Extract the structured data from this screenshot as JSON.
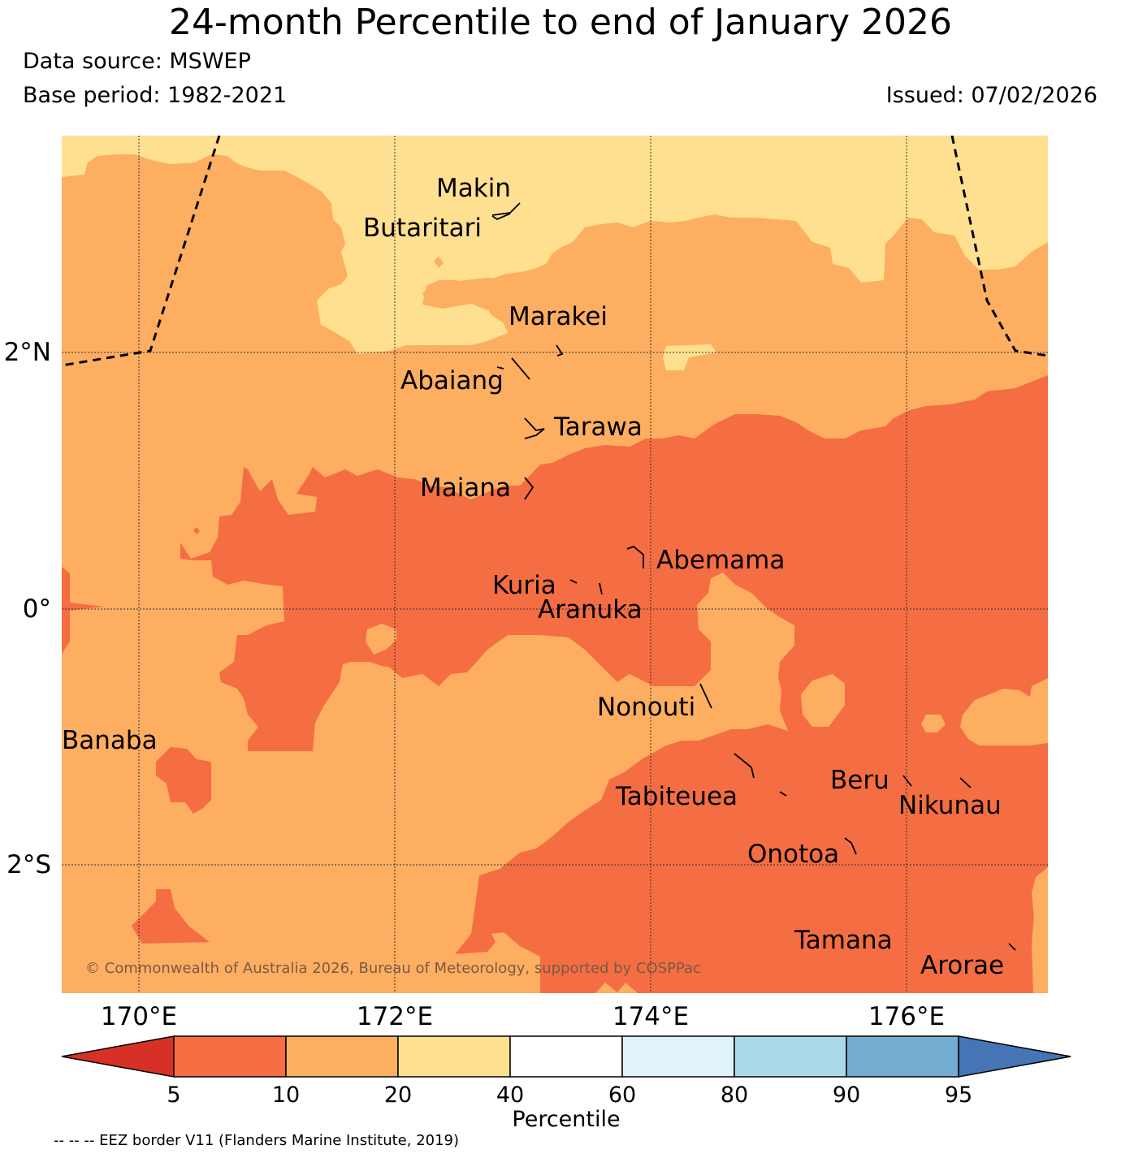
{
  "title": "24-month Percentile to end of January 2026",
  "data_source": "Data source: MSWEP",
  "base_period": "Base period: 1982-2021",
  "issued": "Issued: 07/02/2026",
  "copyright": "© Commonwealth of Australia 2026, Bureau of Meteorology, supported by COSPPac",
  "footer_note": "-- -- -- EEZ border V11 (Flanders Marine Institute, 2019)",
  "latitude_labels": [
    "2°N",
    "0°",
    "2°S"
  ],
  "longitude_labels": [
    "170°E",
    "172°E",
    "174°E",
    "176°E"
  ],
  "places": [
    "Makin",
    "Butaritari",
    "Marakei",
    "Abaiang",
    "Tarawa",
    "Maiana",
    "Abemama",
    "Kuria",
    "Aranuka",
    "Nonouti",
    "Banaba",
    "Beru",
    "Tabiteuea",
    "Nikunau",
    "Onotoa",
    "Tamana",
    "Arorae"
  ],
  "colorbar": {
    "label": "Percentile",
    "ticks": [
      "5",
      "10",
      "20",
      "40",
      "60",
      "80",
      "90",
      "95"
    ],
    "bins": [
      {
        "range": "<5",
        "color": "#d73027"
      },
      {
        "range": "5-10",
        "color": "#f46d43"
      },
      {
        "range": "10-20",
        "color": "#fdae61"
      },
      {
        "range": "20-40",
        "color": "#fee090"
      },
      {
        "range": "40-60",
        "color": "#ffffff"
      },
      {
        "range": "60-80",
        "color": "#e0f3f8"
      },
      {
        "range": "80-90",
        "color": "#abd9e9"
      },
      {
        "range": "90-95",
        "color": "#74add1"
      },
      {
        "range": ">95",
        "color": "#4575b4"
      }
    ]
  }
}
